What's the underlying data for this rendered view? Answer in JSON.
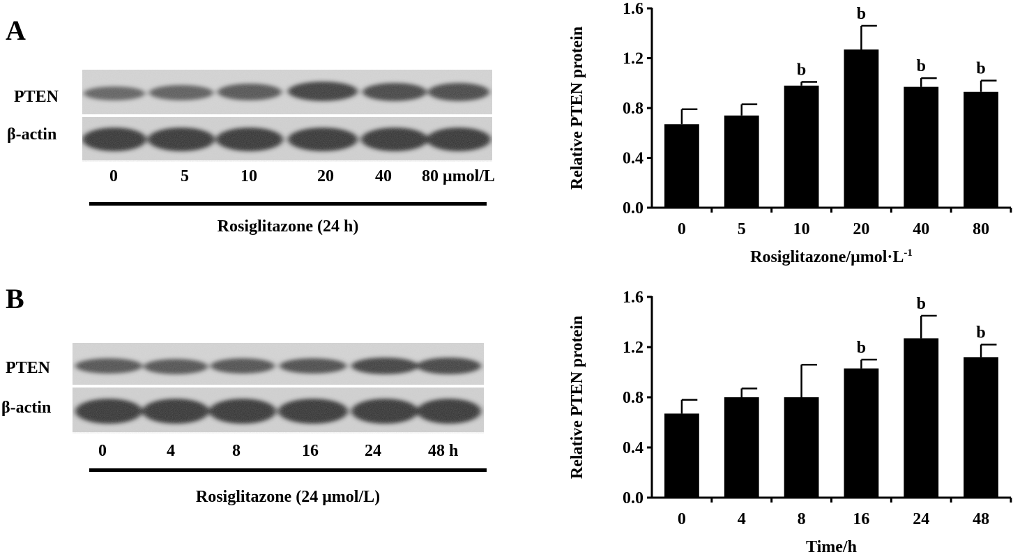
{
  "panels": [
    {
      "letter": "A",
      "blot": {
        "rows": [
          "PTEN",
          "β-actin"
        ],
        "lanes": [
          "0",
          "5",
          "10",
          "20",
          "40",
          "80 μmol/L"
        ],
        "treatment": "Rosiglitazone (24 h)"
      }
    },
    {
      "letter": "B",
      "blot": {
        "rows": [
          "PTEN",
          "β-actin"
        ],
        "lanes": [
          "0",
          "4",
          "8",
          "16",
          "24",
          "48 h"
        ],
        "treatment": "Rosiglitazone (24 μmol/L)"
      }
    }
  ],
  "chart_data": [
    {
      "type": "bar",
      "categories": [
        "0",
        "5",
        "10",
        "20",
        "40",
        "80"
      ],
      "values": [
        0.67,
        0.74,
        0.98,
        1.27,
        0.97,
        0.93
      ],
      "errors": [
        0.12,
        0.09,
        0.03,
        0.19,
        0.07,
        0.09
      ],
      "annotations": [
        "",
        "",
        "b",
        "b",
        "b",
        "b"
      ],
      "ylabel": "Relative PTEN protein",
      "xlabel": "Rosiglitazone/μmol·L",
      "xlabel_sup": "-1",
      "ylim": [
        0,
        1.6
      ],
      "yticks": [
        "0.0",
        "0.4",
        "0.8",
        "1.2",
        "1.6"
      ],
      "bar_color": "#000000"
    },
    {
      "type": "bar",
      "categories": [
        "0",
        "4",
        "8",
        "16",
        "24",
        "48"
      ],
      "values": [
        0.67,
        0.8,
        0.8,
        1.03,
        1.27,
        1.12
      ],
      "errors": [
        0.11,
        0.07,
        0.26,
        0.07,
        0.18,
        0.1
      ],
      "annotations": [
        "",
        "",
        "",
        "b",
        "b",
        "b"
      ],
      "ylabel": "Relative PTEN protein",
      "xlabel": "Time/h",
      "xlabel_sup": "",
      "ylim": [
        0,
        1.6
      ],
      "yticks": [
        "0.0",
        "0.4",
        "0.8",
        "1.2",
        "1.6"
      ],
      "bar_color": "#000000"
    }
  ]
}
